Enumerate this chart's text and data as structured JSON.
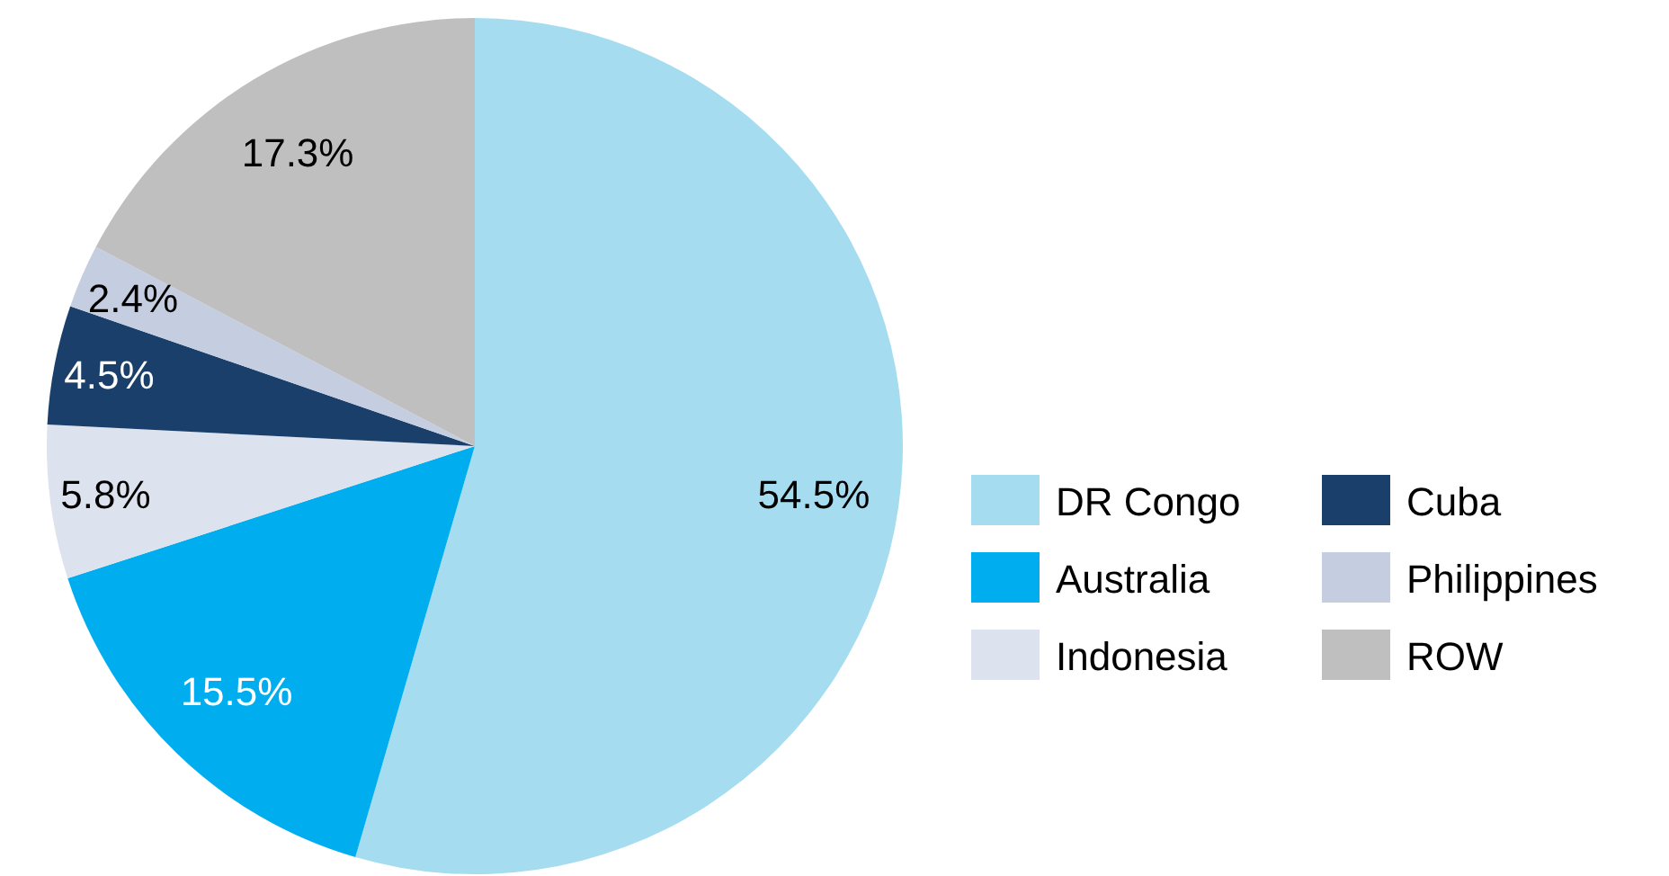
{
  "chart_data": {
    "type": "pie",
    "categories": [
      "DR Congo",
      "Australia",
      "Indonesia",
      "Cuba",
      "Philippines",
      "ROW"
    ],
    "values": [
      54.5,
      15.5,
      5.8,
      4.5,
      2.4,
      17.3
    ],
    "colors": [
      "#a6dcef",
      "#00aeef",
      "#dde3ee",
      "#1a3f6b",
      "#c5cde0",
      "#bfbfbf"
    ],
    "value_labels": [
      "54.5%",
      "15.5%",
      "5.8%",
      "4.5%",
      "2.4%",
      "17.3%"
    ],
    "legend": "right"
  }
}
